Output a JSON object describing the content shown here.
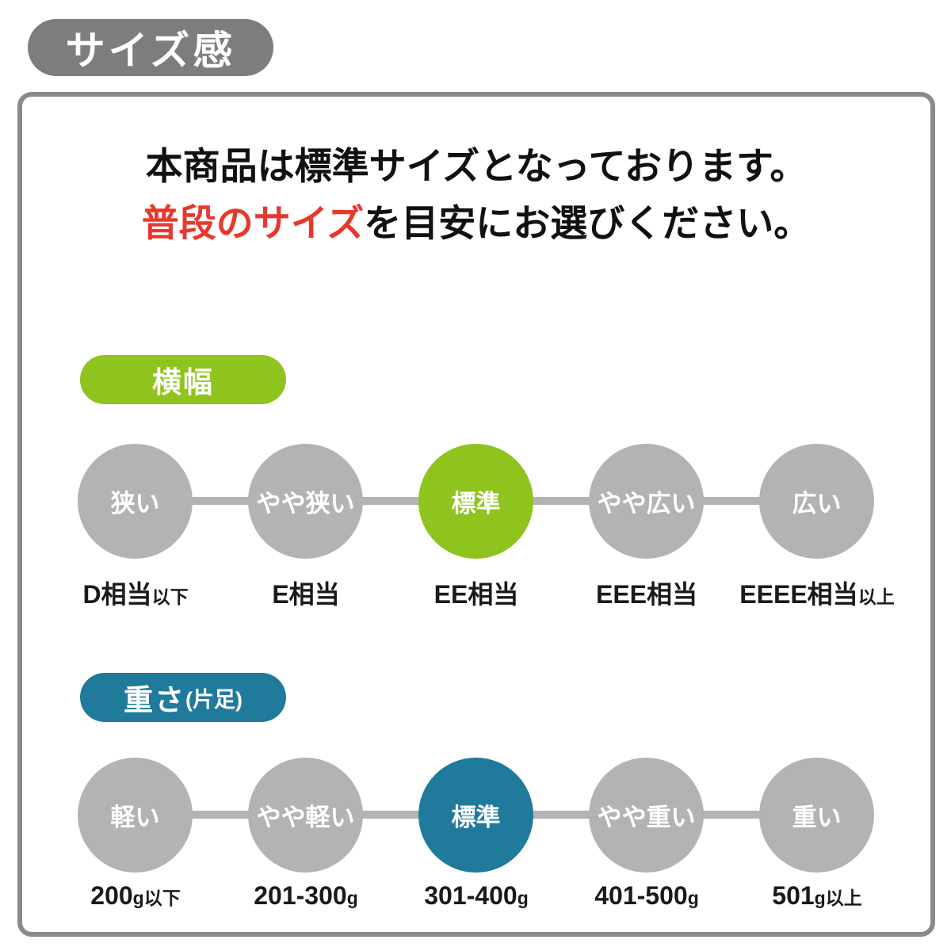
{
  "header": {
    "title": "サイズ感"
  },
  "intro": {
    "line1": "本商品は標準サイズとなっております。",
    "line2_highlight": "普段のサイズ",
    "line2_rest": "を目安にお選びください。"
  },
  "colors": {
    "accent_green": "#8fc31e",
    "accent_teal": "#1f7a9c",
    "inactive_gray": "#b3b3b3",
    "badge_gray": "#7d7d7d",
    "highlight_red": "#e8382d",
    "box_border_gray": "#8a8a8a"
  },
  "sections": [
    {
      "id": "width",
      "pill_label": "横幅",
      "pill_suffix": "",
      "active_index": 2,
      "circles": [
        {
          "label": "狭い"
        },
        {
          "label": "やや狭い"
        },
        {
          "label": "標準"
        },
        {
          "label": "やや広い"
        },
        {
          "label": "広い"
        }
      ],
      "labels": [
        {
          "main": "D相当",
          "suffix": "以下"
        },
        {
          "main": "E相当",
          "suffix": ""
        },
        {
          "main": "EE相当",
          "suffix": ""
        },
        {
          "main": "EEE相当",
          "suffix": ""
        },
        {
          "main": "EEEE相当",
          "suffix": "以上"
        }
      ]
    },
    {
      "id": "weight",
      "pill_label": "重さ",
      "pill_suffix": "(片足)",
      "active_index": 2,
      "circles": [
        {
          "label": "軽い"
        },
        {
          "label": "やや軽い"
        },
        {
          "label": "標準"
        },
        {
          "label": "やや重い"
        },
        {
          "label": "重い"
        }
      ],
      "labels": [
        {
          "main": "200",
          "suffix": "g以下"
        },
        {
          "main": "201-300",
          "suffix": "g"
        },
        {
          "main": "301-400",
          "suffix": "g"
        },
        {
          "main": "401-500",
          "suffix": "g"
        },
        {
          "main": "501",
          "suffix": "g以上"
        }
      ]
    }
  ]
}
